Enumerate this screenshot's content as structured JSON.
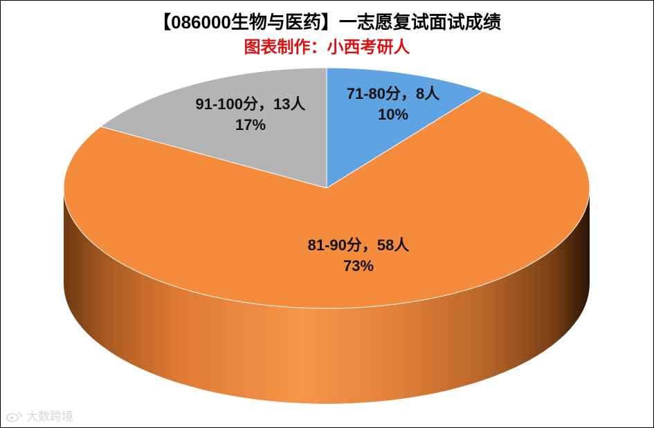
{
  "chart_data": {
    "type": "pie",
    "title": "【086000生物与医药】一志愿复试面试成绩",
    "subtitle": "图表制作：小西考研人",
    "slices": [
      {
        "label": "71-80分，8人",
        "pct_text": "10%",
        "value": 8,
        "color": "#5fa3e3"
      },
      {
        "label": "81-90分，58人",
        "pct_text": "73%",
        "value": 58,
        "color": "#f58b3c"
      },
      {
        "label": "91-100分，13人",
        "pct_text": "17%",
        "value": 13,
        "color": "#b4b4b4"
      }
    ],
    "legend": "none",
    "style": "3d"
  },
  "watermark": {
    "text": "大数跨境",
    "icon": "weibo-icon"
  }
}
